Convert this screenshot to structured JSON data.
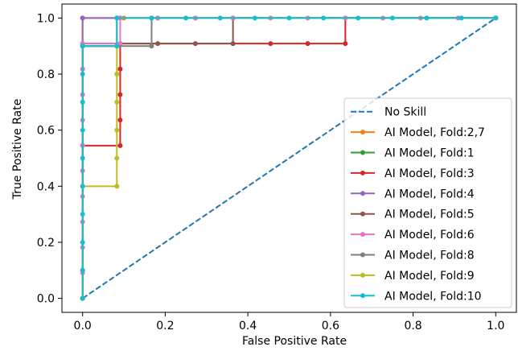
{
  "chart_data": {
    "type": "line",
    "xlabel": "False Positive Rate",
    "ylabel": "True Positive Rate",
    "xlim": [
      -0.05,
      1.05
    ],
    "ylim": [
      -0.05,
      1.05
    ],
    "xticks": [
      "0.0",
      "0.2",
      "0.4",
      "0.6",
      "0.8",
      "1.0"
    ],
    "yticks": [
      "0.0",
      "0.2",
      "0.4",
      "0.6",
      "0.8",
      "1.0"
    ],
    "grid": false,
    "legend_position": "lower right",
    "series": [
      {
        "name": "No Skill",
        "color": "#1f77b4",
        "style": "dashed",
        "markers": false,
        "points": [
          [
            0,
            0
          ],
          [
            1,
            1
          ]
        ]
      },
      {
        "name": "AI Model, Fold:2,7",
        "color": "#ff7f0e",
        "style": "solid",
        "markers": true,
        "points": [
          [
            0,
            0
          ],
          [
            0,
            0.1
          ],
          [
            0,
            1
          ],
          [
            0.1,
            1
          ],
          [
            1,
            1
          ]
        ]
      },
      {
        "name": "AI Model, Fold:1",
        "color": "#2ca02c",
        "style": "solid",
        "markers": true,
        "points": [
          [
            0,
            0
          ],
          [
            0,
            0.9
          ],
          [
            0.083,
            0.9
          ],
          [
            0.083,
            1
          ],
          [
            1,
            1
          ]
        ]
      },
      {
        "name": "AI Model, Fold:3",
        "color": "#d62728",
        "style": "solid",
        "markers": true,
        "points": [
          [
            0,
            0
          ],
          [
            0,
            0.545
          ],
          [
            0.091,
            0.545
          ],
          [
            0.091,
            0.636
          ],
          [
            0.091,
            0.727
          ],
          [
            0.091,
            0.818
          ],
          [
            0.091,
            0.909
          ],
          [
            0.364,
            0.909
          ],
          [
            0.455,
            0.909
          ],
          [
            0.545,
            0.909
          ],
          [
            0.636,
            0.909
          ],
          [
            0.636,
            1
          ],
          [
            1,
            1
          ]
        ]
      },
      {
        "name": "AI Model, Fold:4",
        "color": "#9467bd",
        "style": "solid",
        "markers": true,
        "points": [
          [
            0,
            0
          ],
          [
            0,
            0.818
          ],
          [
            0,
            1
          ],
          [
            0.091,
            1
          ],
          [
            0.182,
            1
          ],
          [
            0.273,
            1
          ],
          [
            1,
            1
          ]
        ]
      },
      {
        "name": "AI Model, Fold:5",
        "color": "#8c564b",
        "style": "solid",
        "markers": true,
        "points": [
          [
            0,
            0
          ],
          [
            0,
            0.909
          ],
          [
            0.091,
            0.909
          ],
          [
            0.182,
            0.909
          ],
          [
            0.273,
            0.909
          ],
          [
            0.364,
            0.909
          ],
          [
            0.364,
            1
          ],
          [
            1,
            1
          ]
        ]
      },
      {
        "name": "AI Model, Fold:6",
        "color": "#e377c2",
        "style": "solid",
        "markers": true,
        "points": [
          [
            0,
            0
          ],
          [
            0,
            0.091
          ],
          [
            0,
            0.182
          ],
          [
            0,
            0.273
          ],
          [
            0,
            0.364
          ],
          [
            0,
            0.455
          ],
          [
            0,
            0.545
          ],
          [
            0,
            0.636
          ],
          [
            0,
            0.727
          ],
          [
            0,
            0.818
          ],
          [
            0,
            0.909
          ],
          [
            0.091,
            0.909
          ],
          [
            0.091,
            1
          ],
          [
            0.182,
            1
          ],
          [
            0.273,
            1
          ],
          [
            0.364,
            1
          ],
          [
            0.455,
            1
          ],
          [
            0.545,
            1
          ],
          [
            0.636,
            1
          ],
          [
            0.727,
            1
          ],
          [
            0.818,
            1
          ],
          [
            0.909,
            1
          ],
          [
            1,
            1
          ]
        ]
      },
      {
        "name": "AI Model, Fold:8",
        "color": "#7f7f7f",
        "style": "solid",
        "markers": true,
        "points": [
          [
            0,
            0
          ],
          [
            0,
            0.9
          ],
          [
            0.083,
            0.9
          ],
          [
            0.167,
            0.9
          ],
          [
            0.167,
            1
          ],
          [
            1,
            1
          ]
        ]
      },
      {
        "name": "AI Model, Fold:9",
        "color": "#bcbd22",
        "style": "solid",
        "markers": true,
        "points": [
          [
            0,
            0
          ],
          [
            0,
            0.1
          ],
          [
            0,
            0.4
          ],
          [
            0.083,
            0.4
          ],
          [
            0.083,
            0.5
          ],
          [
            0.083,
            0.6
          ],
          [
            0.083,
            0.7
          ],
          [
            0.083,
            0.8
          ],
          [
            0.083,
            0.9
          ],
          [
            0.083,
            1
          ],
          [
            1,
            1
          ]
        ]
      },
      {
        "name": "AI Model, Fold:10",
        "color": "#17becf",
        "style": "solid",
        "markers": true,
        "points": [
          [
            0,
            0
          ],
          [
            0,
            0.1
          ],
          [
            0,
            0.2
          ],
          [
            0,
            0.3
          ],
          [
            0,
            0.4
          ],
          [
            0,
            0.5
          ],
          [
            0,
            0.6
          ],
          [
            0,
            0.7
          ],
          [
            0,
            0.8
          ],
          [
            0,
            0.9
          ],
          [
            0.083,
            0.9
          ],
          [
            0.083,
            1
          ],
          [
            0.167,
            1
          ],
          [
            0.25,
            1
          ],
          [
            0.333,
            1
          ],
          [
            0.417,
            1
          ],
          [
            0.5,
            1
          ],
          [
            0.583,
            1
          ],
          [
            0.667,
            1
          ],
          [
            0.75,
            1
          ],
          [
            0.833,
            1
          ],
          [
            0.917,
            1
          ],
          [
            1,
            1
          ]
        ]
      }
    ]
  }
}
